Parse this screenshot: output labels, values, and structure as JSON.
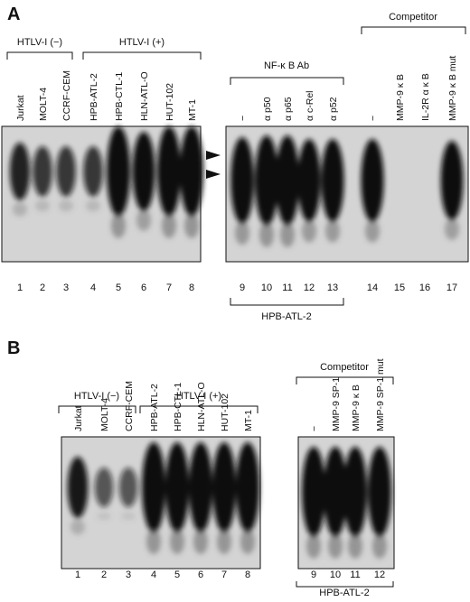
{
  "panel_a": {
    "label": "A",
    "left_groups": [
      "HTLV-I (−)",
      "HTLV-I (+)"
    ],
    "left_lanes": [
      {
        "label": "Jurkat",
        "number": 1
      },
      {
        "label": "MOLT-4",
        "number": 2
      },
      {
        "label": "CCRF-CEM",
        "number": 3
      },
      {
        "label": "HPB-ATL-2",
        "number": 4
      },
      {
        "label": "HPB-CTL-1",
        "number": 5
      },
      {
        "label": "HLN-ATL-O",
        "number": 6
      },
      {
        "label": "HUT-102",
        "number": 7
      },
      {
        "label": "MT-1",
        "number": 8
      }
    ],
    "right_groups": [
      "NF-κ B Ab",
      "Competitor"
    ],
    "right_lanes": [
      {
        "label": "−",
        "number": 9
      },
      {
        "label": "α p50",
        "number": 10
      },
      {
        "label": "α p65",
        "number": 11
      },
      {
        "label": "α c-Rel",
        "number": 12
      },
      {
        "label": "α p52",
        "number": 13
      },
      {
        "label": "−",
        "number": 14
      },
      {
        "label": "MMP-9 κ B",
        "number": 15
      },
      {
        "label": "IL-2R α κ B",
        "number": 16
      },
      {
        "label": "MMP-9 κ B mut",
        "number": 17
      }
    ],
    "sample": "HPB-ATL-2"
  },
  "panel_b": {
    "label": "B",
    "left_groups": [
      "HTLV-I (−)",
      "HTLV-I (+)"
    ],
    "left_lanes": [
      {
        "label": "Jurkat",
        "number": 1
      },
      {
        "label": "MOLT-4",
        "number": 2
      },
      {
        "label": "CCRF-CEM",
        "number": 3
      },
      {
        "label": "HPB-ATL-2",
        "number": 4
      },
      {
        "label": "HPB-CTL-1",
        "number": 5
      },
      {
        "label": "HLN-ATL-O",
        "number": 6
      },
      {
        "label": "HUT-102",
        "number": 7
      },
      {
        "label": "MT-1",
        "number": 8
      }
    ],
    "right_groups": [
      "Competitor"
    ],
    "right_lanes": [
      {
        "label": "−",
        "number": 9
      },
      {
        "label": "MMP-9 SP-1",
        "number": 10
      },
      {
        "label": "MMP-9 κ B",
        "number": 11
      },
      {
        "label": "MMP-9 SP-1 mut",
        "number": 12
      }
    ],
    "sample": "HPB-ATL-2"
  }
}
